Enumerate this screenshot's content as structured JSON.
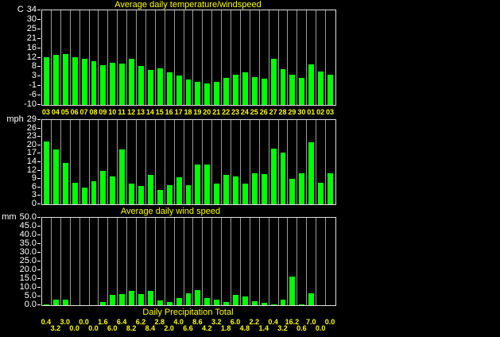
{
  "window": {
    "background_color": "#000000",
    "bar_color": "#00FF00",
    "label_color_yellow": "#FFFF00",
    "label_color_white": "#FFFFFF",
    "grid_color": "#9A9A9A"
  },
  "chart_data": [
    {
      "type": "bar",
      "title": "Average daily temperature/windspeed",
      "unit": "C",
      "ylim": [
        -10,
        34
      ],
      "yticks": [
        "34",
        "30",
        "25",
        "21",
        "16",
        "12",
        "8",
        "3",
        "-1",
        "-6",
        "-10"
      ],
      "legend_position": "none",
      "grid": "vertical cell separators",
      "categories": [
        "03",
        "04",
        "05",
        "06",
        "07",
        "08",
        "09",
        "10",
        "11",
        "12",
        "13",
        "14",
        "15",
        "16",
        "17",
        "18",
        "19",
        "20",
        "21",
        "22",
        "23",
        "24",
        "25",
        "26",
        "27",
        "28",
        "29",
        "30",
        "01",
        "02",
        "03"
      ],
      "values": [
        12,
        13.2,
        13.5,
        12,
        11.6,
        10.3,
        8.4,
        9.7,
        9.4,
        11.6,
        8.3,
        6.3,
        7.1,
        5.2,
        3.8,
        1.9,
        0.9,
        0.1,
        0.6,
        2.7,
        4.1,
        5.2,
        3.1,
        2.1,
        11.3,
        6.7,
        3.9,
        2.5,
        9.0,
        5.7,
        4.2
      ]
    },
    {
      "type": "bar",
      "title": "",
      "unit": "mph",
      "ylim": [
        0,
        29
      ],
      "yticks": [
        "29",
        "26",
        "23",
        "20",
        "17",
        "14",
        "12",
        "9",
        "6",
        "3",
        "0"
      ],
      "legend_position": "none",
      "grid": "vertical cell separators",
      "categories": [
        "03",
        "04",
        "05",
        "06",
        "07",
        "08",
        "09",
        "10",
        "11",
        "12",
        "13",
        "14",
        "15",
        "16",
        "17",
        "18",
        "19",
        "20",
        "21",
        "22",
        "23",
        "24",
        "25",
        "26",
        "27",
        "28",
        "29",
        "30",
        "01",
        "02",
        "03"
      ],
      "values": [
        21.7,
        18.8,
        14.2,
        7.4,
        5.8,
        7.9,
        11.4,
        9.6,
        18.8,
        7.2,
        6.4,
        10.1,
        4.8,
        6.7,
        9.2,
        6.7,
        13.8,
        13.7,
        7.0,
        10.0,
        9.7,
        7.0,
        10.6,
        10.3,
        19.1,
        17.7,
        8.8,
        10.8,
        21.3,
        7.4,
        10.7
      ]
    },
    {
      "type": "bar",
      "title": "Average daily wind speed",
      "title_below": "Daily Precipitation Total",
      "unit": "mm",
      "ylim": [
        0,
        50
      ],
      "yticks": [
        "50.0",
        "45.0",
        "40.0",
        "35.0",
        "30.0",
        "25.0",
        "20.0",
        "15.0",
        "10.0",
        "5.0",
        "0.0"
      ],
      "legend_position": "none",
      "grid": "vertical cell separators",
      "categories": [
        "03",
        "04",
        "05",
        "06",
        "07",
        "08",
        "09",
        "10",
        "11",
        "12",
        "13",
        "14",
        "15",
        "16",
        "17",
        "18",
        "19",
        "20",
        "21",
        "22",
        "23",
        "24",
        "25",
        "26",
        "27",
        "28",
        "29",
        "30",
        "01",
        "02",
        "03"
      ],
      "values": [
        0.4,
        3.2,
        3.0,
        0.0,
        0.0,
        0.0,
        1.6,
        6.0,
        6.4,
        8.2,
        6.2,
        8.4,
        2.8,
        2.0,
        4.0,
        6.6,
        8.6,
        4.2,
        3.2,
        1.8,
        6.0,
        4.8,
        2.2,
        1.4,
        0.4,
        3.2,
        16.2,
        0.6,
        7.0,
        0.0,
        0.0
      ],
      "value_labels": [
        "0.4",
        "3.2",
        "3.0",
        "0.0",
        "0.0",
        "0.0",
        "1.6",
        "6.0",
        "6.4",
        "8.2",
        "6.2",
        "8.4",
        "2.8",
        "2.0",
        "4.0",
        "6.6",
        "8.6",
        "4.2",
        "3.2",
        "1.8",
        "6.0",
        "4.8",
        "2.2",
        "1.4",
        "0.4",
        "3.2",
        "16.2",
        "0.6",
        "7.0",
        "0.0",
        "0.0"
      ]
    }
  ]
}
